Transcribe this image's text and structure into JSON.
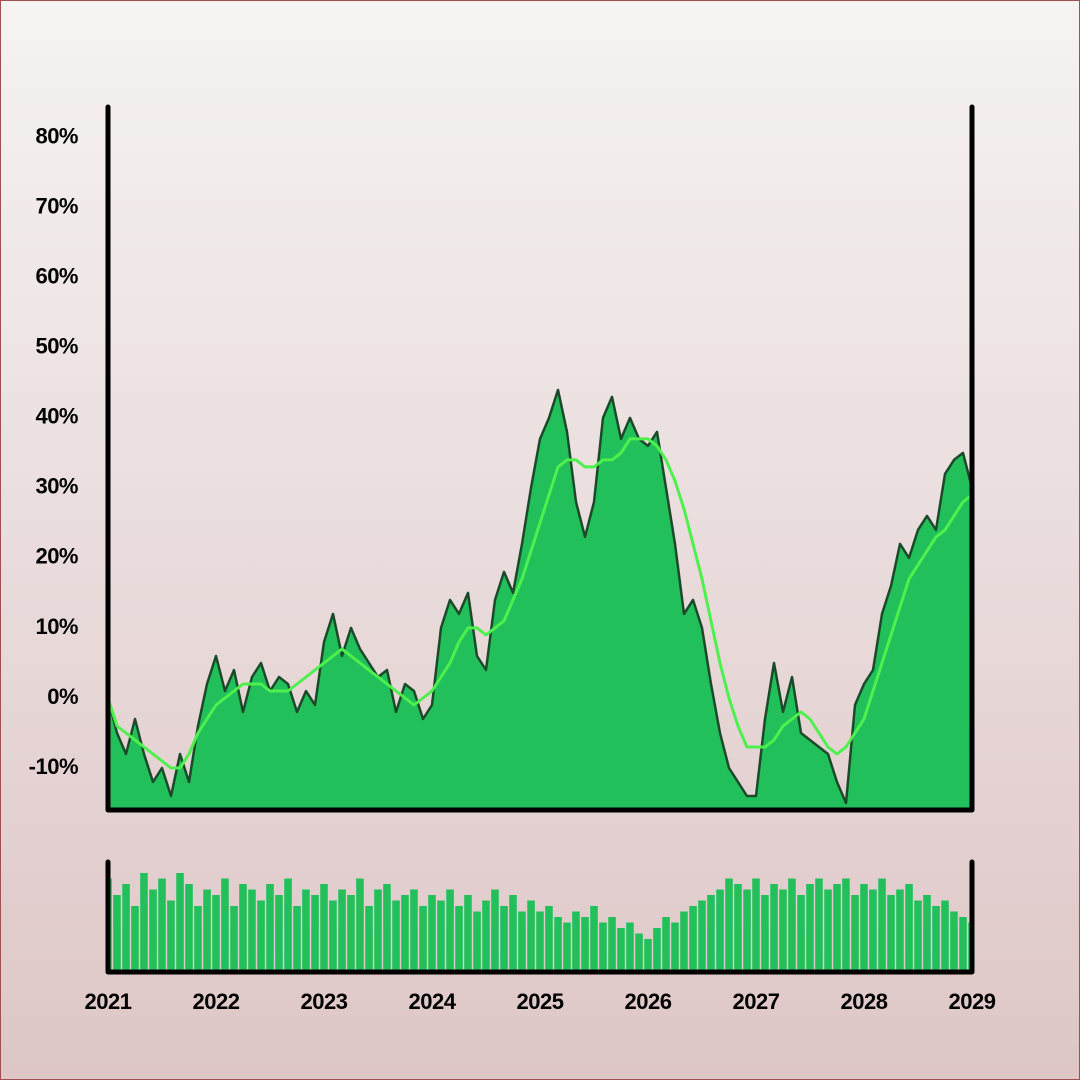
{
  "chart_data": [
    {
      "type": "area",
      "x": [
        2021,
        2021.083,
        2021.167,
        2021.25,
        2021.333,
        2021.417,
        2021.5,
        2021.583,
        2021.667,
        2021.75,
        2021.833,
        2021.917,
        2022,
        2022.083,
        2022.167,
        2022.25,
        2022.333,
        2022.417,
        2022.5,
        2022.583,
        2022.667,
        2022.75,
        2022.833,
        2022.917,
        2023,
        2023.083,
        2023.167,
        2023.25,
        2023.333,
        2023.417,
        2023.5,
        2023.583,
        2023.667,
        2023.75,
        2023.833,
        2023.917,
        2024,
        2024.083,
        2024.167,
        2024.25,
        2024.333,
        2024.417,
        2024.5,
        2024.583,
        2024.667,
        2024.75,
        2024.833,
        2024.917,
        2025,
        2025.083,
        2025.167,
        2025.25,
        2025.333,
        2025.417,
        2025.5,
        2025.583,
        2025.667,
        2025.75,
        2025.833,
        2025.917,
        2026,
        2026.083,
        2026.167,
        2026.25,
        2026.333,
        2026.417,
        2026.5,
        2026.583,
        2026.667,
        2026.75,
        2026.833,
        2026.917,
        2027,
        2027.083,
        2027.167,
        2027.25,
        2027.333,
        2027.417,
        2027.5,
        2027.583,
        2027.667,
        2027.75,
        2027.833,
        2027.917,
        2028,
        2028.083,
        2028.167,
        2028.25,
        2028.333,
        2028.417,
        2028.5,
        2028.583,
        2028.667,
        2028.75,
        2028.833,
        2028.917,
        2029
      ],
      "series": [
        {
          "type": "area",
          "color": "#22c05a",
          "line_color": "#1b4a2a",
          "values": [
            0,
            -5,
            -8,
            -3,
            -8,
            -12,
            -10,
            -14,
            -8,
            -12,
            -4,
            2,
            6,
            1,
            4,
            -2,
            3,
            5,
            1,
            3,
            2,
            -2,
            1,
            -1,
            8,
            12,
            6,
            10,
            7,
            5,
            3,
            4,
            -2,
            2,
            1,
            -3,
            -1,
            10,
            14,
            12,
            15,
            6,
            4,
            14,
            18,
            15,
            22,
            30,
            37,
            40,
            44,
            38,
            28,
            23,
            28,
            40,
            43,
            37,
            40,
            37,
            36,
            38,
            30,
            22,
            12,
            14,
            10,
            2,
            -5,
            -10,
            -12,
            -14,
            -14,
            -3,
            5,
            -2,
            3,
            -5,
            -6,
            -7,
            -8,
            -12,
            -15,
            -1,
            2,
            4,
            12,
            16,
            22,
            20,
            24,
            26,
            24,
            32,
            34,
            35,
            30
          ]
        },
        {
          "type": "line",
          "color": "#4ef04e",
          "values": [
            0,
            -4,
            -5,
            -6,
            -7,
            -8,
            -9,
            -10,
            -10,
            -8,
            -5,
            -3,
            -1,
            0,
            1,
            2,
            2,
            2,
            1,
            1,
            1,
            2,
            3,
            4,
            5,
            6,
            7,
            6,
            5,
            4,
            3,
            2,
            1,
            0,
            -1,
            0,
            1,
            3,
            5,
            8,
            10,
            10,
            9,
            10,
            11,
            14,
            17,
            21,
            25,
            29,
            33,
            34,
            34,
            33,
            33,
            34,
            34,
            35,
            37,
            37,
            37,
            36,
            34,
            31,
            27,
            22,
            17,
            11,
            5,
            0,
            -4,
            -7,
            -7,
            -7,
            -6,
            -4,
            -3,
            -2,
            -3,
            -5,
            -7,
            -8,
            -7,
            -5,
            -3,
            1,
            5,
            9,
            13,
            17,
            19,
            21,
            23,
            24,
            26,
            28,
            29
          ]
        }
      ],
      "xlim": [
        2021,
        2029
      ],
      "ylim": [
        -16,
        84.4
      ],
      "yticks": [
        {
          "value": -10,
          "label": "-10%"
        },
        {
          "value": 0,
          "label": "0%"
        },
        {
          "value": 10,
          "label": "10%"
        },
        {
          "value": 20,
          "label": "20%"
        },
        {
          "value": 30,
          "label": "30%"
        },
        {
          "value": 40,
          "label": "40%"
        },
        {
          "value": 50,
          "label": "50%"
        },
        {
          "value": 60,
          "label": "60%"
        },
        {
          "value": 70,
          "label": "70%"
        },
        {
          "value": 80,
          "label": "80%"
        }
      ]
    },
    {
      "type": "bar",
      "color": "#22c05a",
      "x": [
        2021,
        2021.083,
        2021.167,
        2021.25,
        2021.333,
        2021.417,
        2021.5,
        2021.583,
        2021.667,
        2021.75,
        2021.833,
        2021.917,
        2022,
        2022.083,
        2022.167,
        2022.25,
        2022.333,
        2022.417,
        2022.5,
        2022.583,
        2022.667,
        2022.75,
        2022.833,
        2022.917,
        2023,
        2023.083,
        2023.167,
        2023.25,
        2023.333,
        2023.417,
        2023.5,
        2023.583,
        2023.667,
        2023.75,
        2023.833,
        2023.917,
        2024,
        2024.083,
        2024.167,
        2024.25,
        2024.333,
        2024.417,
        2024.5,
        2024.583,
        2024.667,
        2024.75,
        2024.833,
        2024.917,
        2025,
        2025.083,
        2025.167,
        2025.25,
        2025.333,
        2025.417,
        2025.5,
        2025.583,
        2025.667,
        2025.75,
        2025.833,
        2025.917,
        2026,
        2026.083,
        2026.167,
        2026.25,
        2026.333,
        2026.417,
        2026.5,
        2026.583,
        2026.667,
        2026.75,
        2026.833,
        2026.917,
        2027,
        2027.083,
        2027.167,
        2027.25,
        2027.333,
        2027.417,
        2027.5,
        2027.583,
        2027.667,
        2027.75,
        2027.833,
        2027.917,
        2028,
        2028.083,
        2028.167,
        2028.25,
        2028.333,
        2028.417,
        2028.5,
        2028.583,
        2028.667,
        2028.75,
        2028.833,
        2028.917,
        2029
      ],
      "values": [
        85,
        70,
        80,
        60,
        90,
        75,
        85,
        65,
        90,
        80,
        60,
        75,
        70,
        85,
        60,
        80,
        75,
        65,
        80,
        70,
        85,
        60,
        75,
        70,
        80,
        65,
        75,
        70,
        85,
        60,
        75,
        80,
        65,
        70,
        75,
        60,
        70,
        65,
        75,
        60,
        70,
        55,
        65,
        75,
        60,
        70,
        55,
        65,
        55,
        60,
        50,
        45,
        55,
        50,
        60,
        45,
        50,
        40,
        45,
        35,
        30,
        40,
        50,
        45,
        55,
        60,
        65,
        70,
        75,
        85,
        80,
        75,
        85,
        70,
        80,
        75,
        85,
        70,
        80,
        85,
        75,
        80,
        85,
        70,
        80,
        75,
        85,
        70,
        75,
        80,
        65,
        70,
        60,
        65,
        55,
        50,
        45
      ],
      "xlim": [
        2021,
        2029
      ],
      "ylim": [
        0,
        100
      ],
      "xticks": [
        2021,
        2022,
        2023,
        2024,
        2025,
        2026,
        2027,
        2028,
        2029
      ]
    }
  ]
}
